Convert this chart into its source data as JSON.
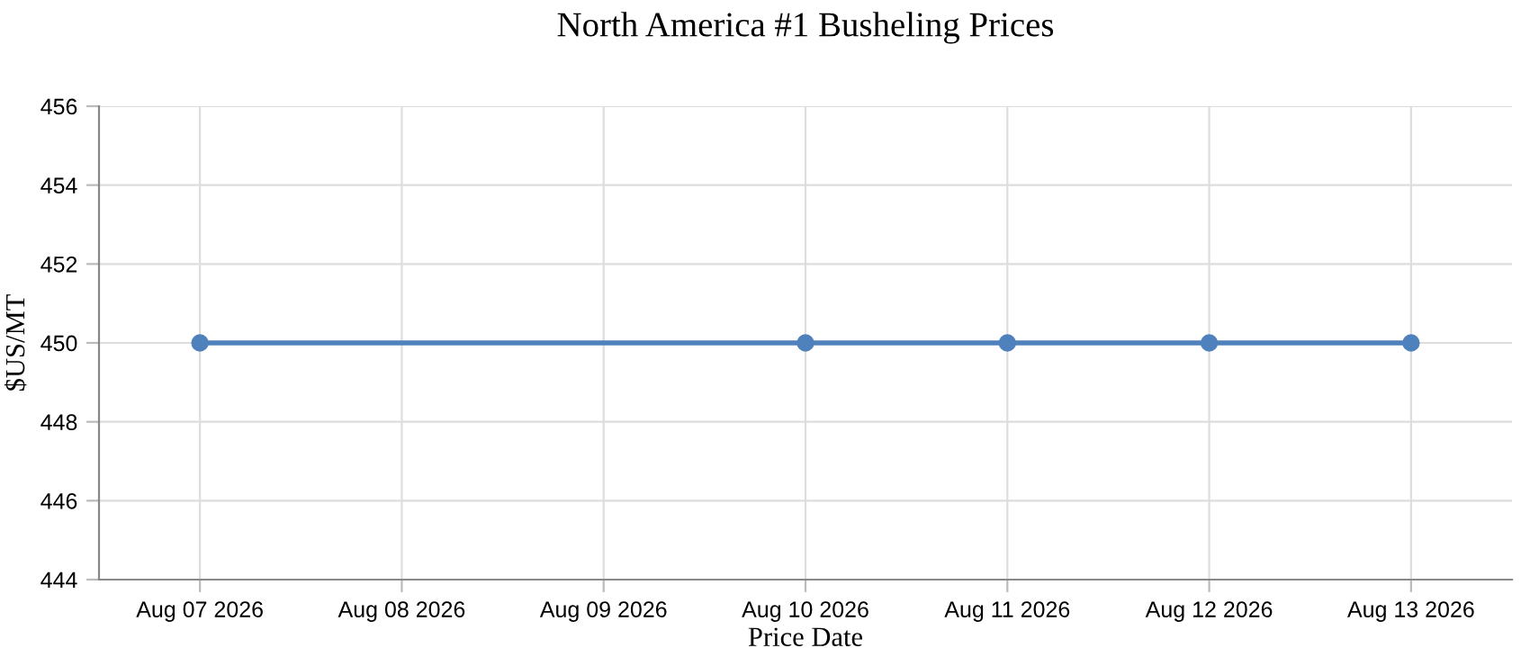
{
  "chart_data": {
    "type": "line",
    "title": "North America #1 Busheling Prices",
    "xlabel": "Price Date",
    "ylabel": "$US/MT",
    "x": [
      "2026-08-07",
      "2026-08-10",
      "2026-08-11",
      "2026-08-12",
      "2026-08-13"
    ],
    "series": [
      {
        "color": "#4f81bc",
        "values": [
          450,
          450,
          450,
          450,
          450
        ]
      }
    ],
    "xlim": [
      "2026-08-06T12:00",
      "2026-08-13T12:00"
    ],
    "xticks": [
      {
        "value": "2026-08-07",
        "label": "Aug 07 2026"
      },
      {
        "value": "2026-08-08",
        "label": "Aug 08 2026"
      },
      {
        "value": "2026-08-09",
        "label": "Aug 09 2026"
      },
      {
        "value": "2026-08-10",
        "label": "Aug 10 2026"
      },
      {
        "value": "2026-08-11",
        "label": "Aug 11 2026"
      },
      {
        "value": "2026-08-12",
        "label": "Aug 12 2026"
      },
      {
        "value": "2026-08-13",
        "label": "Aug 13 2026"
      }
    ],
    "ylim": [
      444,
      456
    ],
    "yticks": [
      444,
      446,
      448,
      450,
      452,
      454,
      456
    ],
    "grid": true,
    "marker": "circle",
    "line_style": "solid"
  }
}
